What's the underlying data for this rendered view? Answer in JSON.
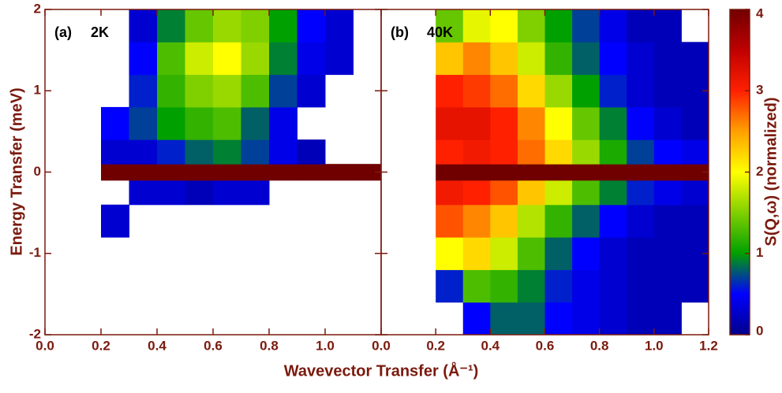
{
  "chart_data": [
    {
      "type": "heatmap",
      "title": "(a)",
      "subtitle": "2K",
      "xlabel": "Wavevector Transfer (Å⁻¹)",
      "ylabel": "Energy Transfer (meV)",
      "xlim": [
        0,
        1.2
      ],
      "ylim": [
        -2,
        2
      ],
      "xticks": [
        {
          "value": 0,
          "label": "0.0"
        },
        0.2,
        0.4,
        0.6,
        0.8,
        {
          "value": 1,
          "label": "1.0"
        }
      ],
      "yticks": [
        -2,
        -1,
        0,
        1,
        2
      ],
      "xbins": [
        0,
        0.1,
        0.2,
        0.3,
        0.4,
        0.5,
        0.6,
        0.7,
        0.8,
        0.9,
        1.0,
        1.1,
        1.2
      ],
      "ybins": [
        -2,
        -1.6,
        -1.2,
        -0.8,
        -0.4,
        -0.1,
        0.1,
        0.4,
        0.8,
        1.2,
        1.6,
        2
      ],
      "values": [
        [
          null,
          null,
          null,
          null,
          null,
          null,
          null,
          null,
          null,
          null,
          null,
          null
        ],
        [
          null,
          null,
          null,
          null,
          null,
          null,
          null,
          null,
          null,
          null,
          null,
          null
        ],
        [
          null,
          null,
          null,
          null,
          null,
          null,
          null,
          null,
          null,
          null,
          null,
          null
        ],
        [
          null,
          null,
          0.3,
          null,
          null,
          null,
          null,
          null,
          null,
          null,
          null,
          null
        ],
        [
          null,
          null,
          null,
          0.3,
          0.3,
          0.2,
          0.3,
          0.3,
          null,
          null,
          null,
          null
        ],
        [
          null,
          null,
          4,
          4,
          4,
          4,
          4,
          4,
          4,
          4,
          4,
          4
        ],
        [
          null,
          null,
          0.3,
          0.3,
          0.6,
          0.8,
          0.9,
          0.7,
          0.4,
          0.2,
          null,
          null
        ],
        [
          null,
          null,
          0.5,
          0.7,
          1.0,
          1.2,
          1.3,
          0.8,
          0.4,
          null,
          null,
          null
        ],
        [
          null,
          null,
          null,
          0.6,
          1.2,
          1.5,
          1.6,
          1.3,
          0.7,
          0.3,
          null,
          null
        ],
        [
          null,
          null,
          null,
          0.5,
          1.3,
          1.8,
          2.0,
          1.6,
          0.9,
          0.4,
          0.3,
          null
        ],
        [
          null,
          null,
          null,
          0.3,
          0.9,
          1.4,
          1.6,
          1.5,
          1.0,
          0.5,
          0.3,
          null
        ]
      ]
    },
    {
      "type": "heatmap",
      "title": "(b)",
      "subtitle": "40K",
      "xlim": [
        0,
        1.2
      ],
      "ylim": [
        -2,
        2
      ],
      "xticks": [
        {
          "value": 0,
          "label": "0.0"
        },
        0.2,
        0.4,
        0.6,
        0.8,
        {
          "value": 1,
          "label": "1.0"
        },
        1.2
      ],
      "yticks": [
        -2,
        -1,
        0,
        1,
        2
      ],
      "xbins": [
        0,
        0.1,
        0.2,
        0.3,
        0.4,
        0.5,
        0.6,
        0.7,
        0.8,
        0.9,
        1.0,
        1.1,
        1.2
      ],
      "ybins": [
        -2,
        -1.6,
        -1.2,
        -0.8,
        -0.4,
        -0.1,
        0.1,
        0.4,
        0.8,
        1.2,
        1.6,
        2
      ],
      "values": [
        [
          null,
          null,
          null,
          0.5,
          0.8,
          0.8,
          0.5,
          0.4,
          0.3,
          0.2,
          0.2,
          null
        ],
        [
          null,
          null,
          0.6,
          1.3,
          1.2,
          0.9,
          0.6,
          0.4,
          0.3,
          0.2,
          0.2,
          0.2
        ],
        [
          null,
          null,
          2.0,
          2.2,
          1.8,
          1.3,
          0.8,
          0.5,
          0.3,
          0.2,
          0.2,
          0.2
        ],
        [
          null,
          null,
          2.8,
          2.6,
          2.3,
          1.7,
          1.2,
          0.8,
          0.5,
          0.3,
          0.2,
          0.2
        ],
        [
          null,
          null,
          3.1,
          3.0,
          2.8,
          2.3,
          1.8,
          1.3,
          0.9,
          0.6,
          0.4,
          0.3
        ],
        [
          null,
          null,
          4,
          4,
          4,
          4,
          4,
          4,
          4,
          4,
          4,
          4
        ],
        [
          null,
          null,
          3.0,
          3.1,
          3.0,
          2.7,
          2.2,
          1.6,
          1.1,
          0.7,
          0.5,
          0.4
        ],
        [
          null,
          null,
          3.2,
          3.2,
          3.0,
          2.6,
          2.0,
          1.4,
          0.9,
          0.5,
          0.3,
          0.2
        ],
        [
          null,
          null,
          3.0,
          2.9,
          2.7,
          2.2,
          1.6,
          1.0,
          0.6,
          0.3,
          0.2,
          0.2
        ],
        [
          null,
          null,
          2.3,
          2.6,
          2.3,
          1.8,
          1.2,
          0.8,
          0.5,
          0.3,
          0.2,
          0.2
        ],
        [
          null,
          null,
          1.4,
          1.9,
          2.0,
          1.5,
          1.0,
          0.7,
          0.4,
          0.2,
          0.2,
          null
        ]
      ],
      "colorbar": {
        "label": "S(Q,ω) (normalized)",
        "lim": [
          0,
          4
        ],
        "ticks": [
          0,
          1,
          2,
          3,
          4
        ],
        "colors": [
          "#00008b",
          "#0000ff",
          "#00a000",
          "#80d000",
          "#ffff00",
          "#ffa000",
          "#ff2000",
          "#c00000",
          "#700000"
        ]
      }
    }
  ]
}
